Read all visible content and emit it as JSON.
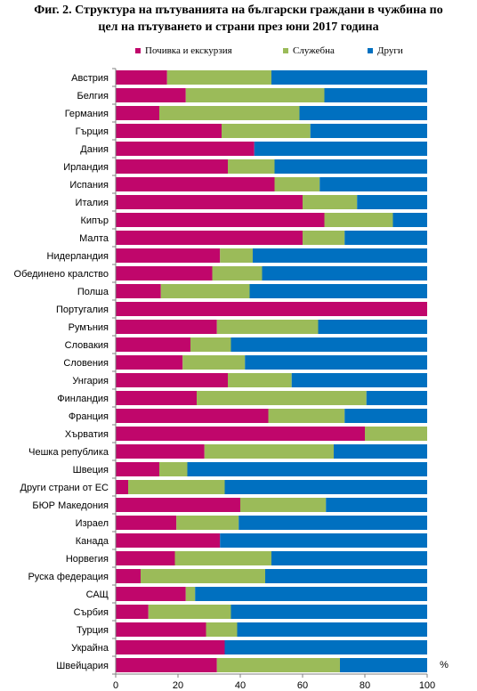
{
  "figure": {
    "title_line1": "Фиг. 2. Структура на пътуванията на български граждани в чужбина по",
    "title_line2": "цел на пътуването и страни през юни 2017 година"
  },
  "chart_data": {
    "type": "bar",
    "orientation": "horizontal",
    "stacked": "percent",
    "unit_label": "%",
    "xlim": [
      0,
      100
    ],
    "xticks": [
      "0",
      "20",
      "40",
      "60",
      "80",
      "100"
    ],
    "legend_position": "top",
    "grid": false,
    "categories": [
      "Австрия",
      "Белгия",
      "Германия",
      "Гърция",
      "Дания",
      "Ирландия",
      "Испания",
      "Италия",
      "Кипър",
      "Малта",
      "Нидерландия",
      "Обединено кралство",
      "Полша",
      "Португалия",
      "Румъния",
      "Словакия",
      "Словения",
      "Унгария",
      "Финландия",
      "Франция",
      "Хърватия",
      "Чешка република",
      "Швеция",
      "Други страни от ЕС",
      "БЮР Македония",
      "Израел",
      "Канада",
      "Норвегия",
      "Руска федерация",
      "САЩ",
      "Сърбия",
      "Турция",
      "Украйна",
      "Швейцария"
    ],
    "series": [
      {
        "name": "Почивка и екскурзия",
        "color": "#c0066b",
        "values": [
          16.5,
          22.5,
          14,
          34,
          44.5,
          36,
          51,
          60,
          67,
          60,
          33.5,
          31,
          14.5,
          100,
          32.5,
          24,
          21.5,
          36,
          26,
          49,
          80,
          28.5,
          14,
          4,
          40,
          19.5,
          33.5,
          19,
          8,
          22.5,
          10.5,
          29,
          35,
          32.5
        ]
      },
      {
        "name": "Служебна",
        "color": "#9bbb59",
        "values": [
          33.5,
          44.5,
          45,
          28.5,
          0,
          15,
          14.5,
          17.5,
          22,
          13.5,
          10.5,
          16,
          28.5,
          0,
          32.5,
          13,
          20,
          20.5,
          54.5,
          24.5,
          20,
          41.5,
          9,
          31,
          27.5,
          20,
          0,
          31,
          40,
          3,
          26.5,
          10,
          0,
          39.5
        ]
      },
      {
        "name": "Други",
        "color": "#0070c0",
        "values": [
          50,
          33,
          41,
          37.5,
          55.5,
          49,
          34.5,
          22.5,
          11,
          26.5,
          56,
          53,
          57,
          0,
          35,
          63,
          58.5,
          43.5,
          19.5,
          26.5,
          0,
          30,
          77,
          65,
          32.5,
          60.5,
          66.5,
          50,
          52,
          74.5,
          63,
          61,
          65,
          28
        ]
      }
    ]
  }
}
